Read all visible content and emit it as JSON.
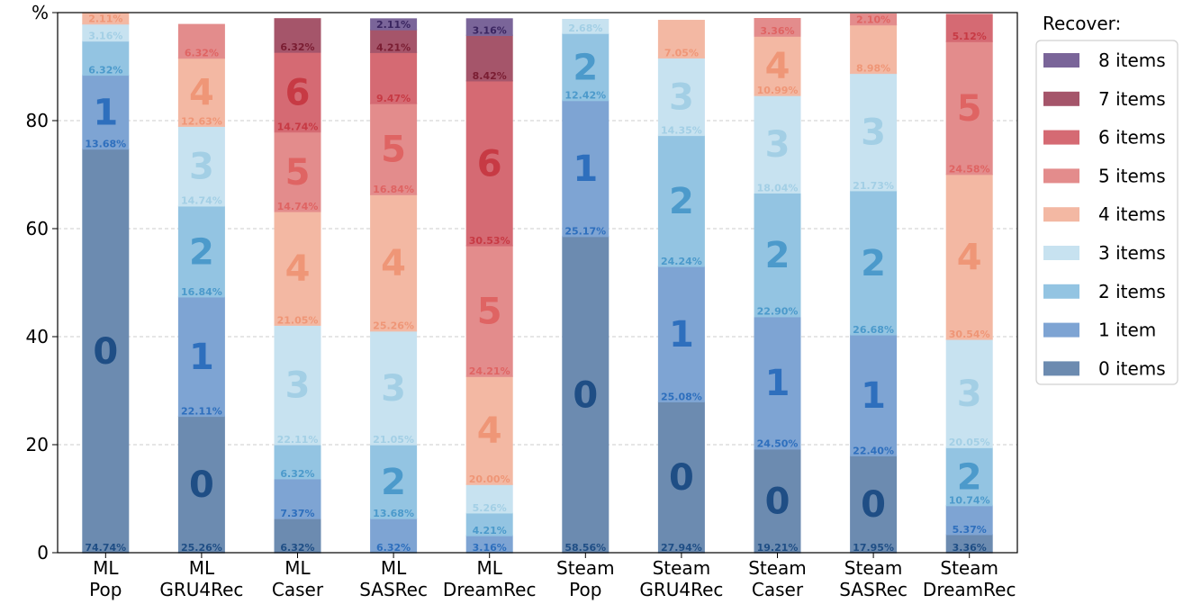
{
  "chart_data": {
    "type": "bar",
    "stacked": true,
    "ylabel": "%",
    "ylim": [
      0,
      100
    ],
    "yticks": [
      "0",
      "20",
      "40",
      "60",
      "80"
    ],
    "grid": "horizontal-dashed",
    "legend_title": "Recover:",
    "legend_position": "right",
    "categories": [
      [
        "ML",
        "Pop"
      ],
      [
        "ML",
        "GRU4Rec"
      ],
      [
        "ML",
        "Caser"
      ],
      [
        "ML",
        "SASRec"
      ],
      [
        "ML",
        "DreamRec"
      ],
      [
        "Steam",
        "Pop"
      ],
      [
        "Steam",
        "GRU4Rec"
      ],
      [
        "Steam",
        "Caser"
      ],
      [
        "Steam",
        "SASRec"
      ],
      [
        "Steam",
        "DreamRec"
      ]
    ],
    "series": [
      {
        "name": "0 items",
        "level": "0",
        "color": "#6c8bb0",
        "text_color": "#1f4e85",
        "values": [
          74.74,
          25.26,
          6.32,
          0.0,
          0.0,
          58.56,
          27.94,
          19.21,
          17.95,
          3.36
        ]
      },
      {
        "name": "1 item",
        "level": "1",
        "color": "#7ea4d3",
        "text_color": "#2e6fbd",
        "values": [
          13.68,
          22.11,
          7.37,
          6.32,
          3.16,
          25.17,
          25.08,
          24.5,
          22.4,
          5.37
        ]
      },
      {
        "name": "2 items",
        "level": "2",
        "color": "#93c4e2",
        "text_color": "#4c9acb",
        "values": [
          6.32,
          16.84,
          6.32,
          13.68,
          4.21,
          12.42,
          24.24,
          22.9,
          26.68,
          10.74
        ]
      },
      {
        "name": "3 items",
        "level": "3",
        "color": "#c7e2f0",
        "text_color": "#a3cfe5",
        "values": [
          3.16,
          14.74,
          22.11,
          21.05,
          5.26,
          2.68,
          14.35,
          18.04,
          21.73,
          20.05
        ]
      },
      {
        "name": "4 items",
        "level": "4",
        "color": "#f3b8a3",
        "text_color": "#ef9677",
        "values": [
          2.11,
          12.63,
          21.05,
          25.26,
          20.0,
          0.0,
          7.05,
          10.99,
          8.98,
          30.54
        ]
      },
      {
        "name": "5 items",
        "level": "5",
        "color": "#e38c8c",
        "text_color": "#df6463",
        "values": [
          0.0,
          6.32,
          14.74,
          16.84,
          24.21,
          0.0,
          0.0,
          3.36,
          2.1,
          24.58
        ]
      },
      {
        "name": "6 items",
        "level": "6",
        "color": "#d56a73",
        "text_color": "#c73a44",
        "values": [
          0.0,
          0.0,
          14.74,
          9.47,
          30.53,
          0.0,
          0.0,
          0.0,
          0.0,
          5.12
        ]
      },
      {
        "name": "7 items",
        "level": "7",
        "color": "#a5556a",
        "text_color": "#7a1d32",
        "values": [
          0.0,
          0.0,
          6.32,
          4.21,
          8.42,
          0.0,
          0.0,
          0.0,
          0.0,
          0.0
        ]
      },
      {
        "name": "8 items",
        "level": "8",
        "color": "#7a6599",
        "text_color": "#3a2560",
        "values": [
          0.0,
          0.0,
          0.0,
          2.11,
          3.16,
          0.0,
          0.0,
          0.0,
          0.0,
          0.0
        ]
      }
    ],
    "segment_labels": [
      [
        [
          "0",
          "74.74%",
          true
        ],
        [
          "1",
          "13.68%",
          true
        ],
        [
          "2",
          "6.32%",
          false
        ],
        [
          "3",
          "3.16%",
          false
        ],
        [
          "4",
          "2.11%",
          false
        ]
      ],
      [
        [
          "0",
          "25.26%",
          true
        ],
        [
          "1",
          "22.11%",
          true
        ],
        [
          "2",
          "16.84%",
          true
        ],
        [
          "3",
          "14.74%",
          true
        ],
        [
          "4",
          "12.63%",
          true
        ],
        [
          "5",
          "6.32%",
          false
        ]
      ],
      [
        [
          "0",
          "6.32%",
          false
        ],
        [
          "1",
          "7.37%",
          false
        ],
        [
          "2",
          "6.32%",
          false
        ],
        [
          "3",
          "22.11%",
          true
        ],
        [
          "4",
          "21.05%",
          true
        ],
        [
          "5",
          "14.74%",
          true
        ],
        [
          "6",
          "14.74%",
          true
        ],
        [
          "7",
          "6.32%",
          false
        ]
      ],
      [
        [
          "1",
          "6.32%",
          false
        ],
        [
          "2",
          "13.68%",
          true
        ],
        [
          "3",
          "21.05%",
          true
        ],
        [
          "4",
          "25.26%",
          true
        ],
        [
          "5",
          "16.84%",
          true
        ],
        [
          "6",
          "9.47%",
          false
        ],
        [
          "7",
          "4.21%",
          false
        ],
        [
          "8",
          "2.11%",
          false
        ]
      ],
      [
        [
          "1",
          "3.16%",
          false
        ],
        [
          "2",
          "4.21%",
          false
        ],
        [
          "3",
          "5.26%",
          false
        ],
        [
          "4",
          "20.00%",
          true
        ],
        [
          "5",
          "24.21%",
          true
        ],
        [
          "6",
          "30.53%",
          true
        ],
        [
          "7",
          "8.42%",
          false
        ],
        [
          "8",
          "3.16%",
          false
        ]
      ],
      [
        [
          "0",
          "58.56%",
          true
        ],
        [
          "1",
          "25.17%",
          true
        ],
        [
          "2",
          "12.42%",
          true
        ],
        [
          "3",
          "2.68%",
          false
        ]
      ],
      [
        [
          "0",
          "27.94%",
          true
        ],
        [
          "1",
          "25.08%",
          true
        ],
        [
          "2",
          "24.24%",
          true
        ],
        [
          "3",
          "14.35%",
          true
        ],
        [
          "4",
          "7.05%",
          false
        ]
      ],
      [
        [
          "0",
          "19.21%",
          true
        ],
        [
          "1",
          "24.50%",
          true
        ],
        [
          "2",
          "22.90%",
          true
        ],
        [
          "3",
          "18.04%",
          true
        ],
        [
          "4",
          "10.99%",
          true
        ],
        [
          "5",
          "3.36%",
          false
        ]
      ],
      [
        [
          "0",
          "17.95%",
          true
        ],
        [
          "1",
          "22.40%",
          true
        ],
        [
          "2",
          "26.68%",
          true
        ],
        [
          "3",
          "21.73%",
          true
        ],
        [
          "4",
          "8.98%",
          false
        ],
        [
          "5",
          "2.10%",
          false
        ]
      ],
      [
        [
          "0",
          "3.36%",
          false
        ],
        [
          "1",
          "5.37%",
          false
        ],
        [
          "2",
          "10.74%",
          true
        ],
        [
          "3",
          "20.05%",
          true
        ],
        [
          "4",
          "30.54%",
          true
        ],
        [
          "5",
          "24.58%",
          true
        ],
        [
          "6",
          "5.12%",
          false
        ]
      ]
    ]
  }
}
